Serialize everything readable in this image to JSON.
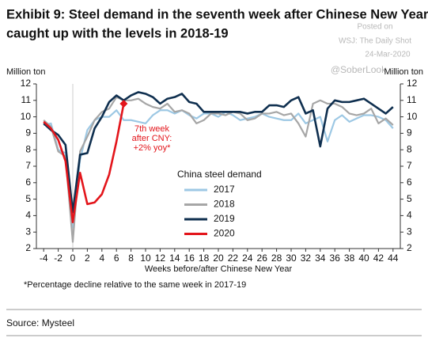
{
  "chart_data": {
    "type": "line",
    "title": [
      "Exhibit 9: Steel demand in the seventh week after Chinese New Year",
      "caught up with the levels in 2018-19"
    ],
    "watermark": [
      "Posted on",
      "WSJ: The Daily Shot",
      "24-Mar-2020",
      "@SoberLook"
    ],
    "ylabel": "Million ton",
    "y2label": "Million ton",
    "xlabel": "Weeks before/after Chinese New Year",
    "legend_title": "China steel demand",
    "annotation": [
      "7th week",
      "after CNY:",
      "+2% yoy*"
    ],
    "footnote": "*Percentage decline relative to the same week in 2017-19",
    "source": "Source: Mysteel",
    "x": [
      -4,
      -3,
      -2,
      -1,
      0,
      1,
      2,
      3,
      4,
      5,
      6,
      7,
      8,
      9,
      10,
      11,
      12,
      13,
      14,
      15,
      16,
      17,
      18,
      19,
      20,
      21,
      22,
      23,
      24,
      25,
      26,
      27,
      28,
      29,
      30,
      31,
      32,
      33,
      34,
      35,
      36,
      37,
      38,
      39,
      40,
      41,
      42,
      43,
      44
    ],
    "series": [
      {
        "name": "2017",
        "color": "#9dc8e4",
        "values": [
          9.5,
          9.6,
          8.0,
          7.8,
          3.3,
          7.4,
          9.2,
          9.8,
          10.0,
          10.0,
          10.4,
          9.8,
          9.8,
          9.7,
          9.6,
          10.1,
          10.4,
          10.4,
          10.2,
          10.4,
          10.1,
          9.9,
          10.2,
          10.2,
          10.0,
          10.3,
          10.1,
          9.8,
          9.9,
          10.0,
          10.2,
          10.0,
          9.9,
          9.8,
          9.8,
          10.2,
          9.6,
          9.8,
          10.0,
          8.5,
          9.8,
          10.1,
          9.7,
          9.9,
          10.1,
          10.1,
          10.0,
          9.8,
          9.3
        ]
      },
      {
        "name": "2018",
        "color": "#a6a6a6",
        "values": [
          9.8,
          9.4,
          7.9,
          7.6,
          2.4,
          7.9,
          8.8,
          9.8,
          10.3,
          10.5,
          11.2,
          11.0,
          11.0,
          11.1,
          10.8,
          10.6,
          10.5,
          10.8,
          10.3,
          10.4,
          10.2,
          9.6,
          9.8,
          10.2,
          10.2,
          10.1,
          10.3,
          10.2,
          9.8,
          9.9,
          10.2,
          10.2,
          10.3,
          10.1,
          10.2,
          9.6,
          8.8,
          10.8,
          11.0,
          10.8,
          10.8,
          10.6,
          10.2,
          10.1,
          10.2,
          10.5,
          9.6,
          9.9,
          9.5
        ]
      },
      {
        "name": "2019",
        "color": "#0f2f4f",
        "values": [
          9.6,
          9.2,
          8.9,
          8.3,
          4.2,
          7.7,
          7.8,
          9.3,
          10.0,
          10.9,
          11.3,
          11.0,
          11.3,
          11.5,
          11.4,
          11.2,
          10.8,
          11.1,
          11.2,
          11.4,
          10.9,
          10.8,
          10.3,
          10.3,
          10.3,
          10.3,
          10.3,
          10.3,
          10.2,
          10.3,
          10.3,
          10.7,
          10.7,
          10.6,
          11.0,
          11.2,
          10.2,
          10.4,
          8.2,
          10.5,
          11.0,
          10.9,
          10.9,
          11.0,
          11.1,
          10.8,
          10.5,
          10.2,
          10.6
        ]
      },
      {
        "name": "2020",
        "color": "#e3151b",
        "marker": "diamond",
        "values": [
          9.7,
          9.3,
          8.6,
          7.3,
          3.6,
          6.6,
          4.7,
          4.8,
          5.3,
          6.5,
          8.5,
          10.8,
          null,
          null,
          null,
          null,
          null,
          null,
          null,
          null,
          null,
          null,
          null,
          null,
          null,
          null,
          null,
          null,
          null,
          null,
          null,
          null,
          null,
          null,
          null,
          null,
          null,
          null,
          null,
          null,
          null,
          null,
          null,
          null,
          null,
          null,
          null,
          null,
          null
        ]
      }
    ],
    "xlim": [
      -5,
      45
    ],
    "xticks": [
      -4,
      -2,
      0,
      2,
      4,
      6,
      8,
      10,
      12,
      14,
      16,
      18,
      20,
      22,
      24,
      26,
      28,
      30,
      32,
      34,
      36,
      38,
      40,
      42,
      44
    ],
    "ylim": [
      2,
      12
    ],
    "yticks": [
      2,
      3,
      4,
      5,
      6,
      7,
      8,
      9,
      10,
      11,
      12
    ],
    "y2lim": [
      2,
      12
    ],
    "y2ticks": [
      2,
      3,
      4,
      5,
      6,
      7,
      8,
      9,
      10,
      11,
      12
    ]
  }
}
